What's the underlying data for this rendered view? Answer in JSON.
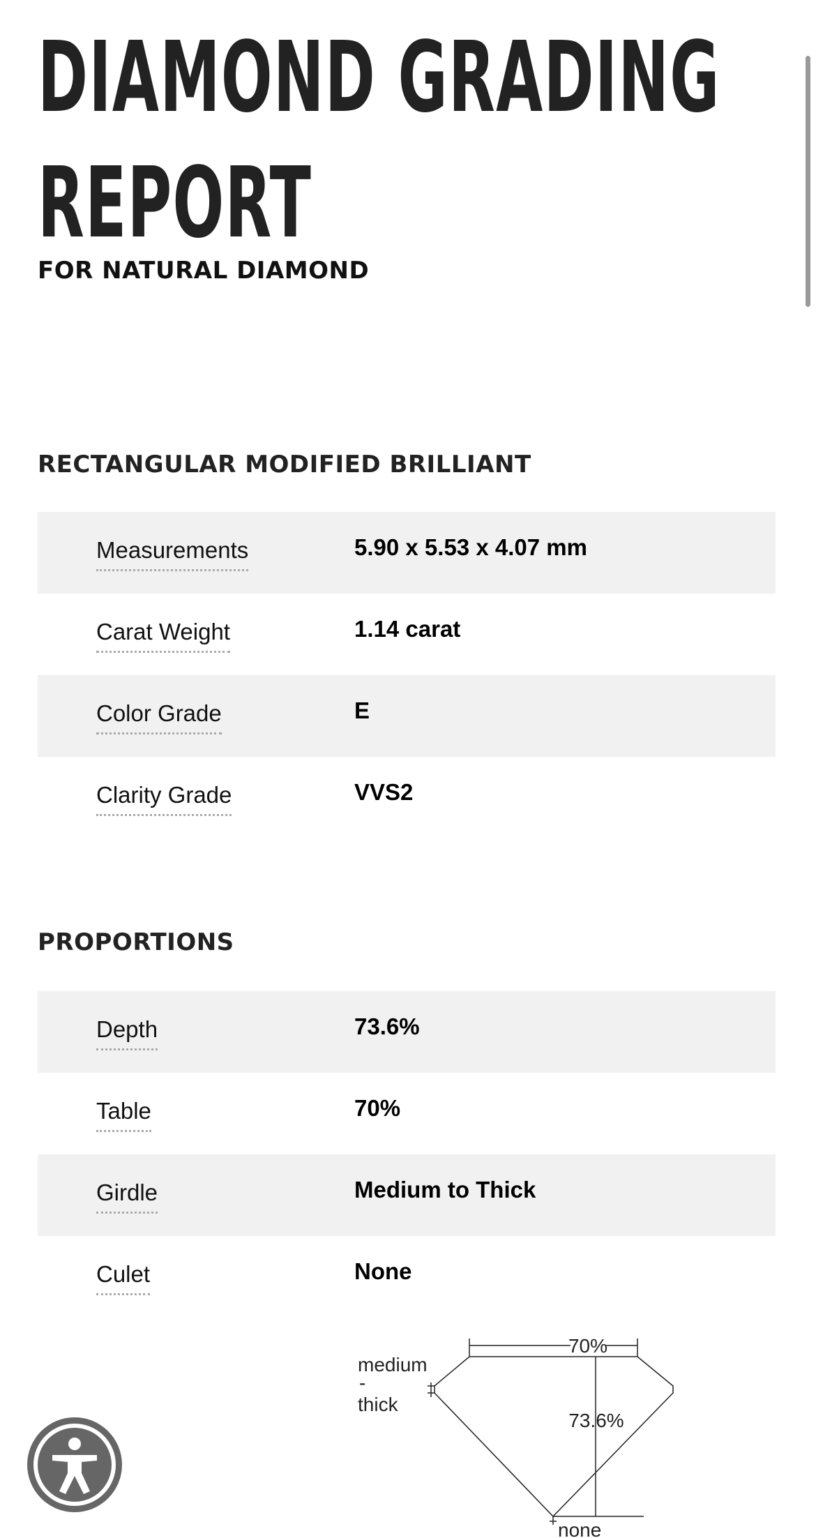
{
  "header": {
    "title_line1": "DIAMOND GRADING",
    "title_line2": "REPORT",
    "subtitle": "FOR NATURAL DIAMOND"
  },
  "shape": {
    "heading": "RECTANGULAR MODIFIED BRILLIANT",
    "rows": [
      {
        "label": "Measurements",
        "value": "5.90 x 5.53 x 4.07 mm"
      },
      {
        "label": "Carat Weight",
        "value": "1.14 carat"
      },
      {
        "label": "Color Grade",
        "value": "E"
      },
      {
        "label": "Clarity Grade",
        "value": "VVS2"
      }
    ]
  },
  "proportions": {
    "heading": "PROPORTIONS",
    "rows": [
      {
        "label": "Depth",
        "value": "73.6%"
      },
      {
        "label": "Table",
        "value": "70%"
      },
      {
        "label": "Girdle",
        "value": "Medium to Thick"
      },
      {
        "label": "Culet",
        "value": "None"
      }
    ],
    "diagram": {
      "table_label": "70%",
      "depth_label": "73.6%",
      "girdle_label_1": "medium",
      "girdle_label_2": "-",
      "girdle_label_3": "thick",
      "culet_label": "none"
    }
  },
  "accessibility": {
    "icon": "accessibility-person-icon"
  }
}
